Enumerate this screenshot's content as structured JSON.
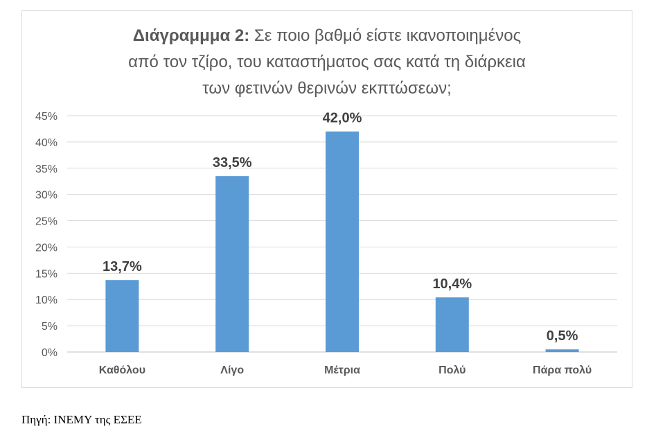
{
  "chart_data": {
    "type": "bar",
    "title_bold": "Διάγραμμμα 2:",
    "title_line1": "Σε ποιο βαθμό είστε  ικανοποιημένος",
    "title_line2": "από τον τζίρο, του καταστήματος σας κατά  τη διάρκεια",
    "title_line3": "των φετινών θερινών εκπτώσεων;",
    "categories": [
      "Καθόλου",
      "Λίγο",
      "Μέτρια",
      "Πολύ",
      "Πάρα πολύ"
    ],
    "values": [
      13.7,
      33.5,
      42.0,
      10.4,
      0.5
    ],
    "data_labels": [
      "13,7%",
      "33,5%",
      "42,0%",
      "10,4%",
      "0,5%"
    ],
    "y_ticks": [
      "0%",
      "5%",
      "10%",
      "15%",
      "20%",
      "25%",
      "30%",
      "35%",
      "40%",
      "45%"
    ],
    "ylim": [
      0,
      45
    ],
    "grid": true,
    "legend": "none",
    "bar_color": "#5b9bd5"
  },
  "source": "Πηγή: ΙΝΕΜΥ της ΕΣΕΕ"
}
